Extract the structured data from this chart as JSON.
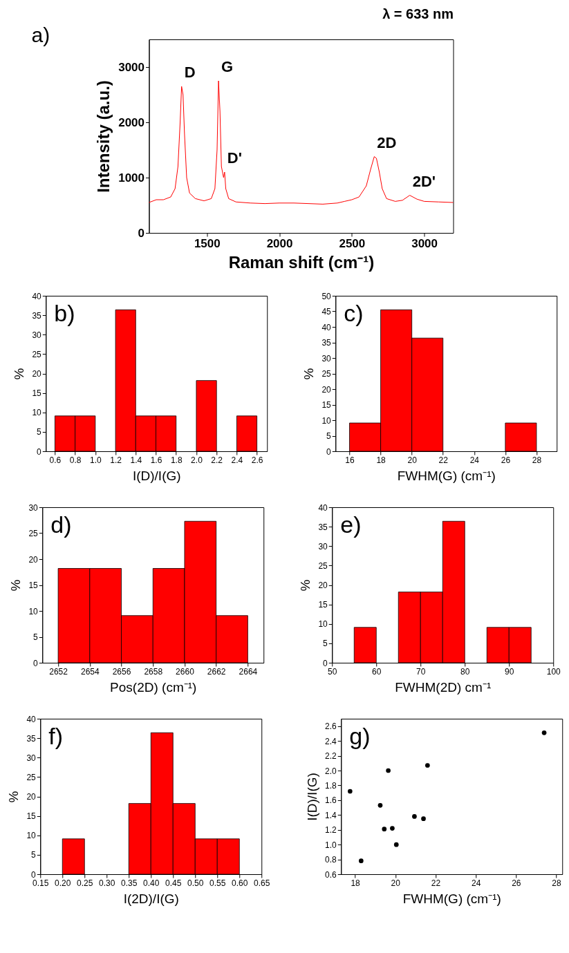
{
  "chart_data": [
    {
      "type": "line",
      "title": "λ = 633 nm",
      "xlabel": "Raman shift (cm⁻¹)",
      "ylabel": "Intensity (a.u.)",
      "color": "#ff0000",
      "x": [
        1100,
        1150,
        1200,
        1250,
        1280,
        1300,
        1315,
        1325,
        1335,
        1345,
        1360,
        1380,
        1420,
        1480,
        1530,
        1555,
        1570,
        1580,
        1590,
        1600,
        1615,
        1622,
        1630,
        1650,
        1700,
        1800,
        1900,
        2000,
        2100,
        2200,
        2300,
        2400,
        2450,
        2500,
        2550,
        2600,
        2630,
        2655,
        2670,
        2690,
        2710,
        2740,
        2800,
        2850,
        2900,
        2950,
        3000,
        3100,
        3200
      ],
      "values": [
        550,
        600,
        600,
        650,
        800,
        1200,
        2000,
        2650,
        2500,
        1800,
        1000,
        720,
        620,
        580,
        620,
        800,
        1500,
        2750,
        2200,
        1200,
        1000,
        1100,
        800,
        620,
        560,
        540,
        530,
        540,
        540,
        530,
        520,
        540,
        570,
        600,
        650,
        850,
        1150,
        1380,
        1350,
        1100,
        800,
        620,
        570,
        590,
        680,
        610,
        570,
        560,
        550
      ],
      "xlim": [
        1100,
        3200
      ],
      "xticks": [
        1500,
        2000,
        2500,
        3000
      ],
      "ylim": [
        0,
        3500
      ],
      "yticks": [
        0,
        1000,
        2000,
        3000
      ],
      "annotations": [
        "a)",
        {
          "text": "D",
          "x": 1325,
          "y": 2650
        },
        {
          "text": "G",
          "x": 1580,
          "y": 2750
        },
        {
          "text": "D'",
          "x": 1622,
          "y": 1100
        },
        {
          "text": "2D",
          "x": 2655,
          "y": 1380
        },
        {
          "text": "2D'",
          "x": 2900,
          "y": 680
        }
      ]
    },
    {
      "type": "histogram",
      "xlabel": "I(D)/I(G)",
      "ylabel": "%",
      "color": "#ff0000",
      "bins": [
        0.6,
        0.8,
        1.0,
        1.2,
        1.4,
        1.6,
        1.8,
        2.0,
        2.2,
        2.4,
        2.6
      ],
      "values": [
        9.1,
        9.1,
        0,
        36.4,
        9.1,
        9.1,
        0,
        18.2,
        0,
        9.1
      ],
      "xlim": [
        0.51,
        2.7
      ],
      "xticks": [
        0.6,
        0.8,
        {
          "value": 1,
          "label": "1.0"
        },
        1.2,
        1.4,
        1.6,
        1.8,
        {
          "value": 2,
          "label": "2.0"
        },
        2.2,
        2.4,
        2.6
      ],
      "ylim": [
        0,
        40
      ],
      "yticks": [
        0,
        5,
        10,
        15,
        20,
        25,
        30,
        35,
        40
      ],
      "annotations": [
        "b)"
      ]
    },
    {
      "type": "histogram",
      "xlabel": "FWHM(G) (cm⁻¹)",
      "ylabel": "%",
      "color": "#ff0000",
      "bins": [
        16,
        18,
        20,
        22,
        24,
        26,
        28
      ],
      "values": [
        9.1,
        45.5,
        36.4,
        0,
        0,
        9.1
      ],
      "xlim": [
        15.1,
        29.3
      ],
      "xticks": [
        16,
        18,
        20,
        22,
        24,
        26,
        28
      ],
      "ylim": [
        0,
        50
      ],
      "yticks": [
        0,
        5,
        10,
        15,
        20,
        25,
        30,
        35,
        40,
        45,
        50
      ],
      "annotations": [
        "c)"
      ]
    },
    {
      "type": "histogram",
      "xlabel": "Pos(2D) (cm⁻¹)",
      "ylabel": "%",
      "color": "#ff0000",
      "bins": [
        2652,
        2654,
        2656,
        2658,
        2660,
        2662,
        2664
      ],
      "values": [
        18.2,
        18.2,
        9.1,
        18.2,
        27.3,
        9.1
      ],
      "xlim": [
        2651,
        2665
      ],
      "xticks": [
        2652,
        2654,
        2656,
        2658,
        2660,
        2662,
        2664
      ],
      "ylim": [
        0,
        30
      ],
      "yticks": [
        0,
        5,
        10,
        15,
        20,
        25,
        30
      ],
      "annotations": [
        "d)"
      ]
    },
    {
      "type": "histogram",
      "xlabel": "FWHM(2D) cm⁻¹",
      "ylabel": "%",
      "color": "#ff0000",
      "bins": [
        55,
        60,
        65,
        70,
        75,
        80,
        85,
        90,
        95
      ],
      "values": [
        9.1,
        0,
        18.2,
        18.2,
        36.4,
        0,
        9.1,
        9.1
      ],
      "xlim": [
        50,
        100
      ],
      "xticks": [
        50,
        60,
        70,
        80,
        90,
        100
      ],
      "ylim": [
        0,
        40
      ],
      "yticks": [
        0,
        5,
        10,
        15,
        20,
        25,
        30,
        35,
        40
      ],
      "annotations": [
        "e)"
      ]
    },
    {
      "type": "histogram",
      "xlabel": "I(2D)/I(G)",
      "ylabel": "%",
      "color": "#ff0000",
      "bins": [
        0.2,
        0.25,
        0.3,
        0.35,
        0.4,
        0.45,
        0.5,
        0.55,
        0.6
      ],
      "values": [
        9.1,
        0,
        0,
        18.2,
        36.4,
        18.2,
        9.1,
        9.1
      ],
      "xlim": [
        0.15,
        0.65
      ],
      "xticks": [
        0.15,
        {
          "value": 0.2,
          "label": "0.20"
        },
        0.25,
        {
          "value": 0.3,
          "label": "0.30"
        },
        0.35,
        {
          "value": 0.4,
          "label": "0.40"
        },
        0.45,
        {
          "value": 0.5,
          "label": "0.50"
        },
        0.55,
        {
          "value": 0.6,
          "label": "0.60"
        },
        0.65
      ],
      "ylim": [
        0,
        40
      ],
      "yticks": [
        0,
        5,
        10,
        15,
        20,
        25,
        30,
        35,
        40
      ],
      "annotations": [
        "f)"
      ]
    },
    {
      "type": "scatter",
      "xlabel": "FWHM(G) (cm⁻¹)",
      "ylabel": "I(D)/I(G)",
      "color": "#000000",
      "marker": "circle",
      "x": [
        17.75,
        18.3,
        19.25,
        19.45,
        19.65,
        19.85,
        20.05,
        20.95,
        21.4,
        21.6,
        27.4
      ],
      "values": [
        1.72,
        0.78,
        1.53,
        1.21,
        2.0,
        1.22,
        1.0,
        1.38,
        1.35,
        2.07,
        2.51
      ],
      "xlim": [
        17.3,
        28.3
      ],
      "xticks": [
        18,
        20,
        22,
        24,
        26,
        28
      ],
      "ylim": [
        0.6,
        2.7
      ],
      "yticks": [
        0.6,
        0.8,
        {
          "value": 1,
          "label": "1.0"
        },
        1.2,
        1.4,
        1.6,
        1.8,
        {
          "value": 2,
          "label": "2.0"
        },
        2.2,
        2.4,
        2.6
      ],
      "annotations": [
        "g)"
      ]
    }
  ]
}
